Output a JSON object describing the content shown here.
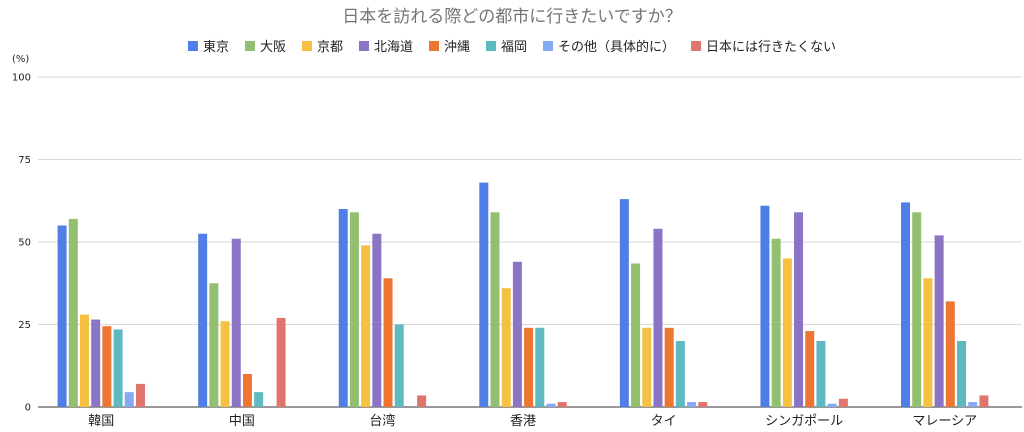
{
  "chart_data": {
    "type": "bar",
    "title": "日本を訪れる際どの都市に行きたいですか？",
    "y_unit": "(%)",
    "ylim": [
      0,
      100
    ],
    "yticks": [
      0,
      25,
      50,
      75,
      100
    ],
    "grid": true,
    "legend_position": "top",
    "categories": [
      "韓国",
      "中国",
      "台湾",
      "香港",
      "タイ",
      "シンガポール",
      "マレーシア"
    ],
    "series": [
      {
        "name": "東京",
        "color": "#4f7fe6",
        "values": [
          55,
          52.5,
          60,
          68,
          63,
          61,
          62
        ]
      },
      {
        "name": "大阪",
        "color": "#93bf71",
        "values": [
          57,
          37.5,
          59,
          59,
          43.5,
          51,
          59
        ]
      },
      {
        "name": "京都",
        "color": "#f6c042",
        "values": [
          28,
          26,
          49,
          36,
          24,
          45,
          39
        ]
      },
      {
        "name": "北海道",
        "color": "#8a74c3",
        "values": [
          26.5,
          51,
          52.5,
          44,
          54,
          59,
          52
        ]
      },
      {
        "name": "沖縄",
        "color": "#ed7632",
        "values": [
          24.5,
          10,
          39,
          24,
          24,
          23,
          32
        ]
      },
      {
        "name": "福岡",
        "color": "#5ebac0",
        "values": [
          23.5,
          4.5,
          25,
          24,
          20,
          20,
          20
        ]
      },
      {
        "name": "その他（具体的に）",
        "color": "#86aaf1",
        "values": [
          4.5,
          0,
          0,
          1,
          1.5,
          1,
          1.5
        ]
      },
      {
        "name": "日本には行きたくない",
        "color": "#e0756e",
        "values": [
          7,
          27,
          3.5,
          1.5,
          1.5,
          2.5,
          3.5
        ]
      }
    ]
  }
}
